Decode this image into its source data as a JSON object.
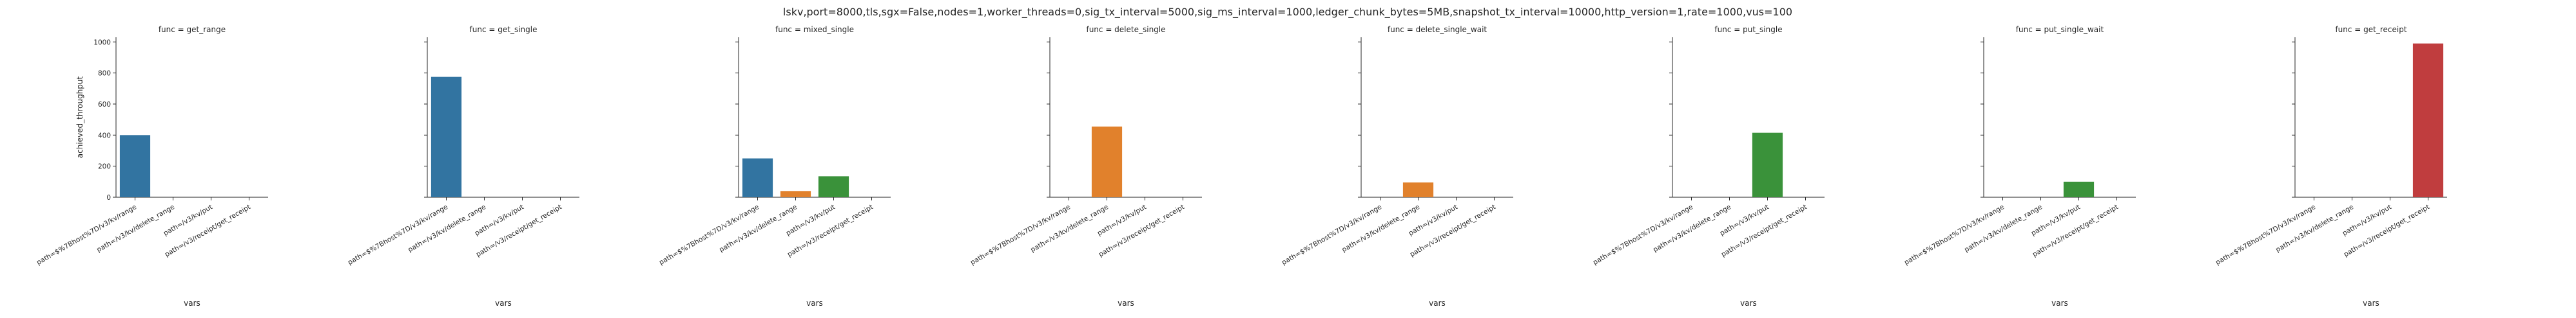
{
  "chart_data": {
    "type": "bar",
    "title": "lskv,port=8000,tls,sgx=False,nodes=1,worker_threads=0,sig_tx_interval=5000,sig_ms_interval=1000,ledger_chunk_bytes=5MB,snapshot_tx_interval=10000,http_version=1,rate=1000,vus=100",
    "xlabel": "vars",
    "ylabel": "achieved_throughput",
    "ylim": [
      0,
      1030
    ],
    "yticks": [
      0,
      200,
      400,
      600,
      800,
      1000
    ],
    "categories": [
      "path=$%7Bhost%7D/v3/kv/range",
      "path=/v3/kv/delete_range",
      "path=/v3/kv/put",
      "path=/v3/receipt/get_receipt"
    ],
    "colors": {
      "path=$%7Bhost%7D/v3/kv/range": "#3274a1",
      "path=/v3/kv/delete_range": "#e1812c",
      "path=/v3/kv/put": "#3a923a",
      "path=/v3/receipt/get_receipt": "#c03d3e"
    },
    "panels": [
      {
        "title": "func = get_range",
        "values": [
          400,
          null,
          null,
          null
        ]
      },
      {
        "title": "func = get_single",
        "values": [
          775,
          null,
          null,
          null
        ]
      },
      {
        "title": "func = mixed_single",
        "values": [
          250,
          40,
          135,
          null
        ]
      },
      {
        "title": "func = delete_single",
        "values": [
          null,
          455,
          null,
          null
        ]
      },
      {
        "title": "func = delete_single_wait",
        "values": [
          null,
          95,
          null,
          null
        ]
      },
      {
        "title": "func = put_single",
        "values": [
          null,
          null,
          415,
          null
        ]
      },
      {
        "title": "func = put_single_wait",
        "values": [
          null,
          null,
          100,
          null
        ]
      },
      {
        "title": "func = get_receipt",
        "values": [
          null,
          null,
          null,
          990
        ]
      }
    ]
  }
}
